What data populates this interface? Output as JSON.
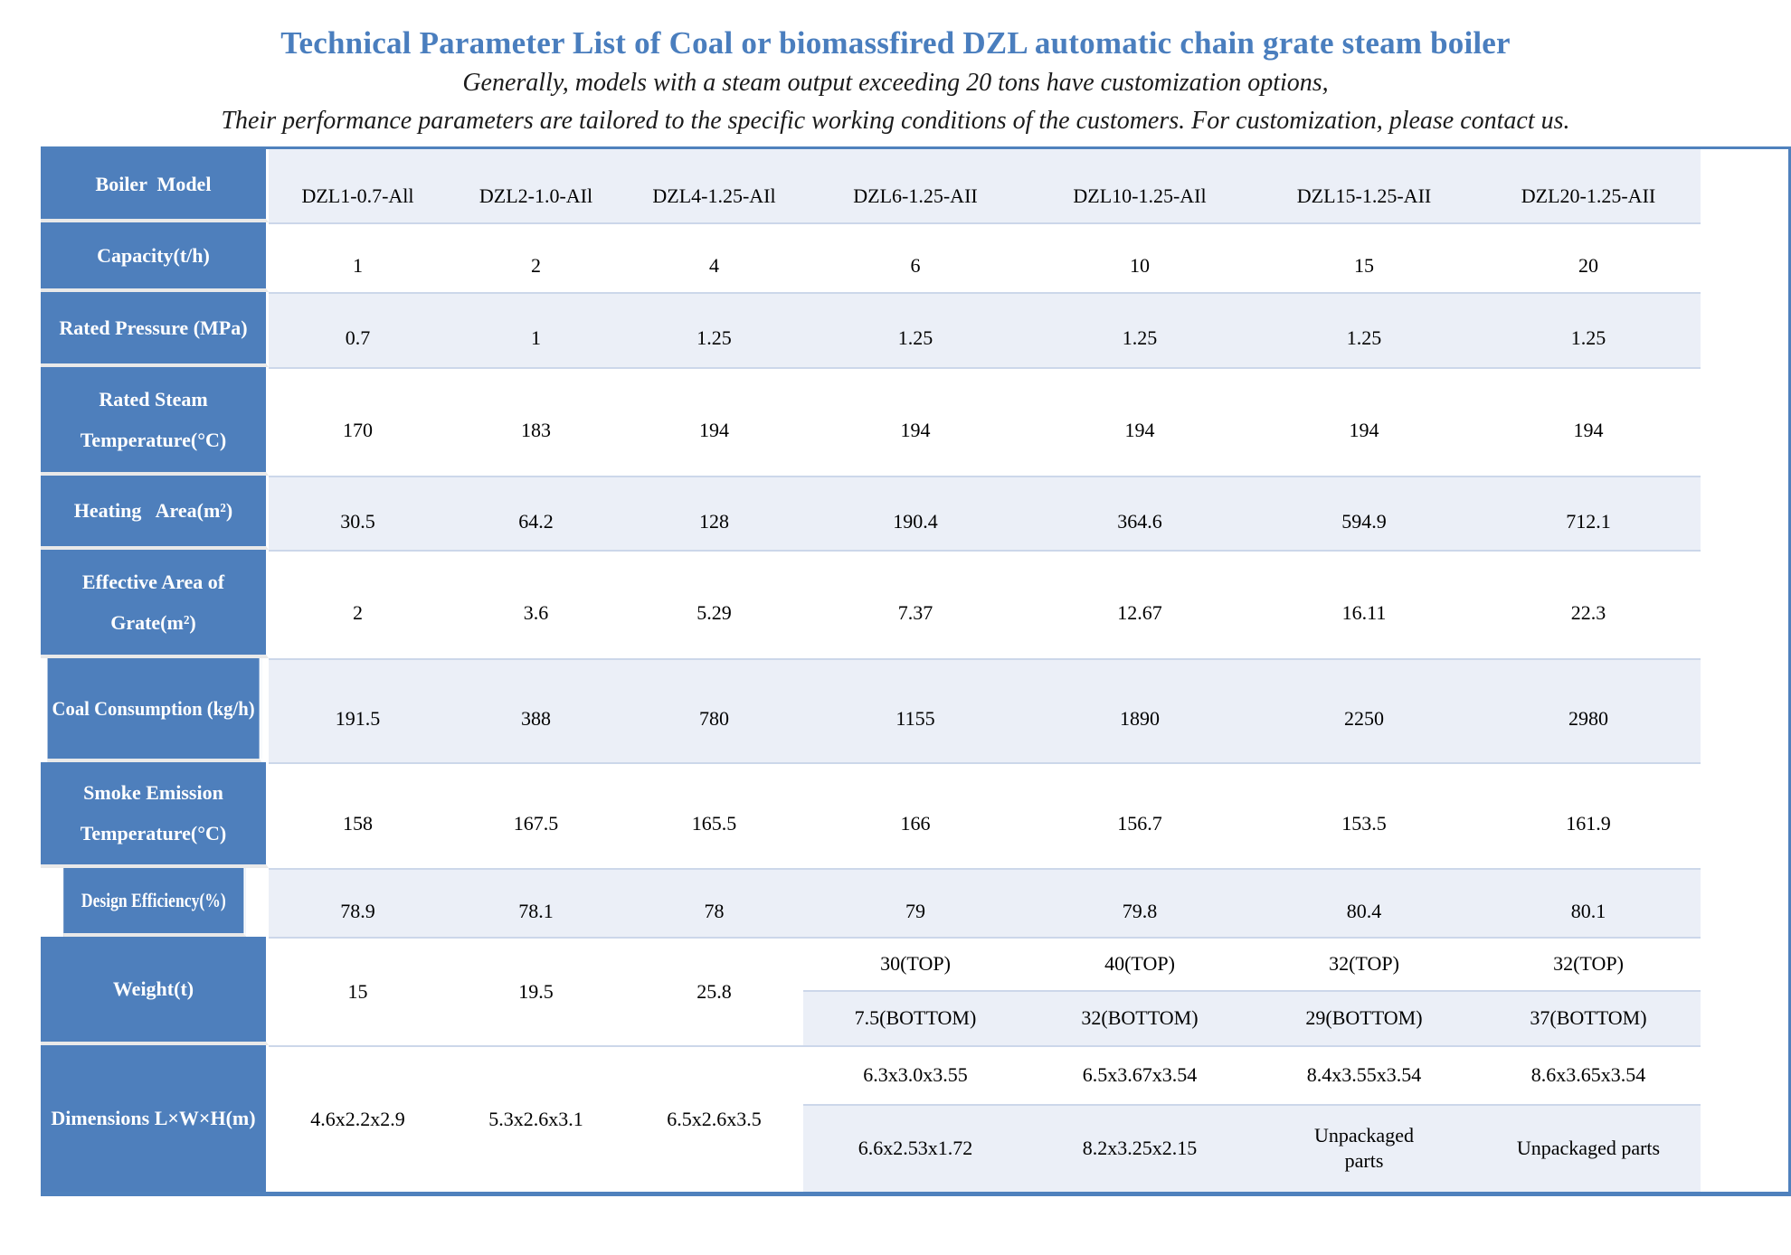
{
  "title": "Technical Parameter List of Coal or biomassfired DZL automatic chain grate steam boiler",
  "subtitle": {
    "line1": "Generally, models with a steam output exceeding 20 tons have customization options,",
    "line2": "Their performance parameters are tailored to the specific working conditions of the customers. For customization, please contact us."
  },
  "colors": {
    "title_blue": "#4a7ebe",
    "label_cell_blue": "#4e7fbc",
    "band_light": "#ebeff7",
    "border_blue": "#4f81bd"
  },
  "table": {
    "corner_label": "Boiler  Model",
    "models": [
      "DZL1-0.7-All",
      "DZL2-1.0-AIl",
      "DZL4-1.25-AIl",
      "DZL6-1.25-AII",
      "DZL10-1.25-AIl",
      "DZL15-1.25-AII",
      "DZL20-1.25-AII"
    ],
    "rows": [
      {
        "label": "Capacity(t/h)",
        "values": [
          "1",
          "2",
          "4",
          "6",
          "10",
          "15",
          "20"
        ]
      },
      {
        "label": "Rated Pressure (MPa)",
        "values": [
          "0.7",
          "1",
          "1.25",
          "1.25",
          "1.25",
          "1.25",
          "1.25"
        ]
      },
      {
        "label": "Rated Steam Temperature(°C)",
        "values": [
          "170",
          "183",
          "194",
          "194",
          "194",
          "194",
          "194"
        ]
      },
      {
        "label": "Heating   Area(m²)",
        "values": [
          "30.5",
          "64.2",
          "128",
          "190.4",
          "364.6",
          "594.9",
          "712.1"
        ]
      },
      {
        "label": "Effective Area of Grate(m²)",
        "values": [
          "2",
          "3.6",
          "5.29",
          "7.37",
          "12.67",
          "16.11",
          "22.3"
        ]
      },
      {
        "label": "Coal Consumption (kg/h)",
        "values": [
          "191.5",
          "388",
          "780",
          "1155",
          "1890",
          "2250",
          "2980"
        ]
      },
      {
        "label": "Smoke Emission Temperature(°C)",
        "values": [
          "158",
          "167.5",
          "165.5",
          "166",
          "156.7",
          "153.5",
          "161.9"
        ]
      },
      {
        "label": "Design Efficiency(%)",
        "values": [
          "78.9",
          "78.1",
          "78",
          "79",
          "79.8",
          "80.4",
          "80.1"
        ]
      }
    ],
    "weight": {
      "label": "Weight(t)",
      "merged_values": [
        "15",
        "19.5",
        "25.8"
      ],
      "top_values": [
        "30(TOP)",
        "40(TOP)",
        "32(TOP)",
        "32(TOP)"
      ],
      "bottom_values": [
        "7.5(BOTTOM)",
        "32(BOTTOM)",
        "29(BOTTOM)",
        "37(BOTTOM)"
      ]
    },
    "dimensions": {
      "label": "Dimensions L×W×H(m)",
      "merged_values": [
        "4.6x2.2x2.9",
        "5.3x2.6x3.1",
        "6.5x2.6x3.5"
      ],
      "top_values": [
        "6.3x3.0x3.55",
        "6.5x3.67x3.54",
        "8.4x3.55x3.54",
        "8.6x3.65x3.54"
      ],
      "bottom_values": [
        "6.6x2.53x1.72",
        "8.2x3.25x2.15",
        "Unpackaged parts",
        "Unpackaged parts"
      ]
    }
  }
}
